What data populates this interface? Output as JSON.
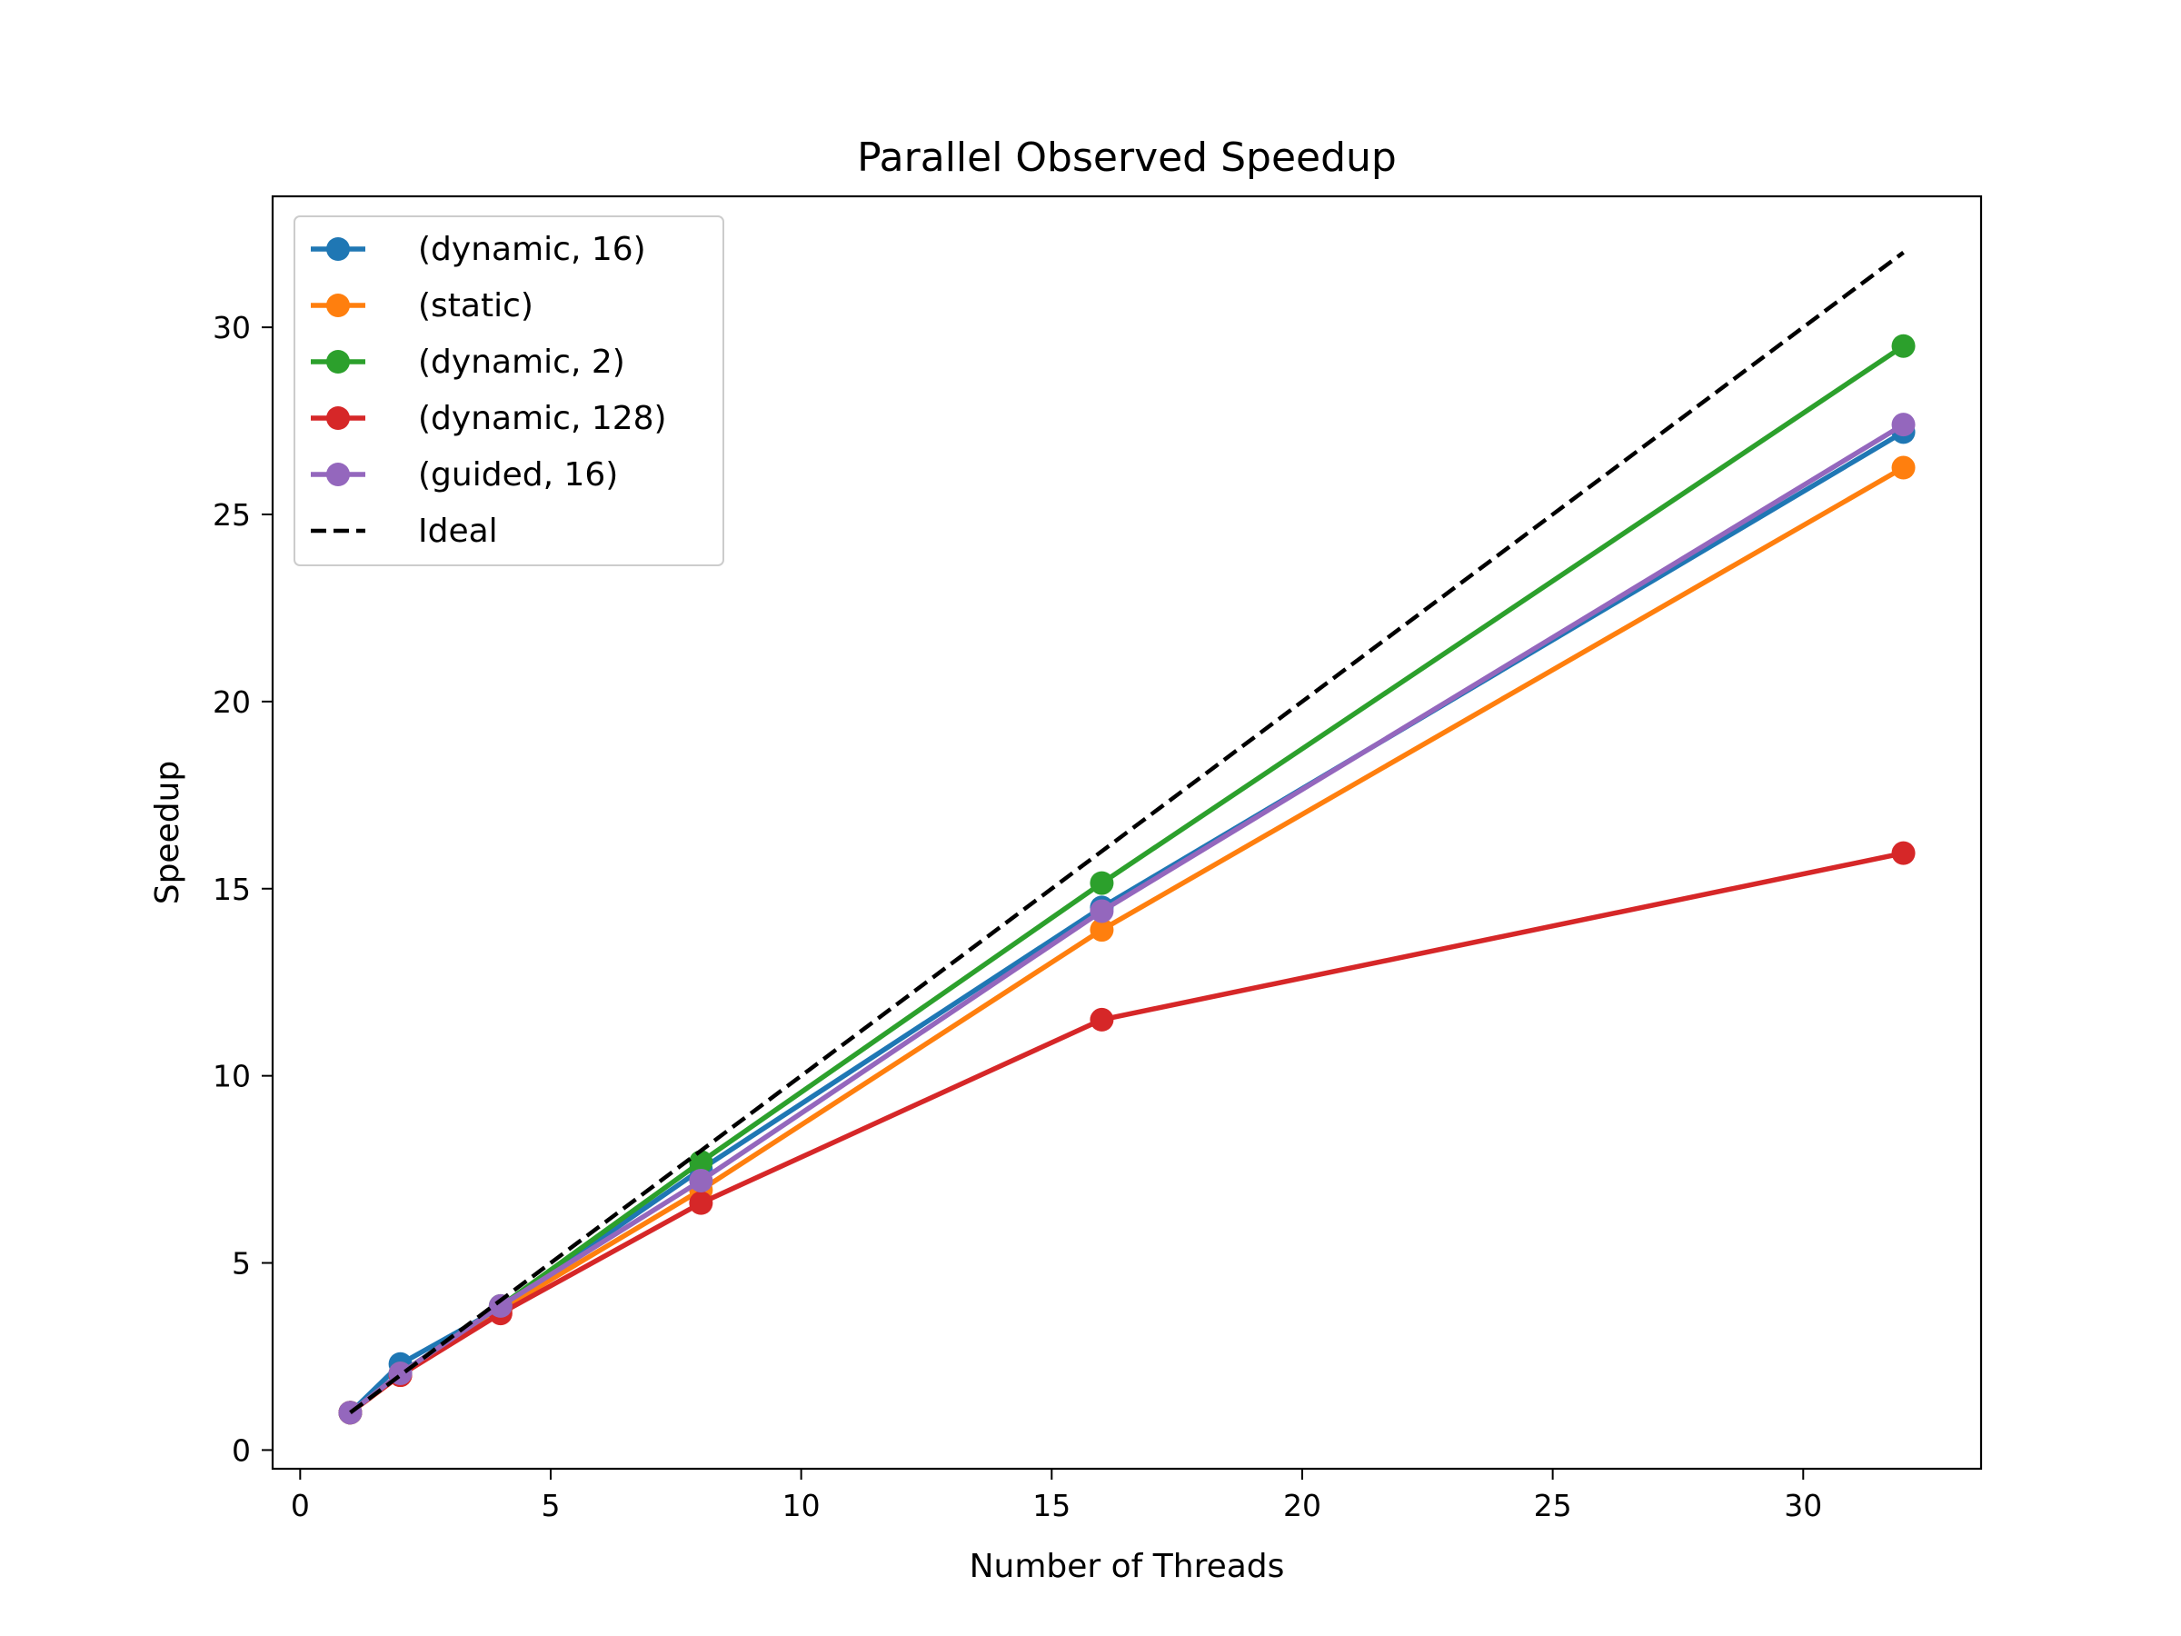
{
  "chart_data": {
    "type": "line",
    "title": "Parallel Observed Speedup",
    "xlabel": "Number of Threads",
    "ylabel": "Speedup",
    "xlim": [
      -0.55,
      33.55
    ],
    "ylim": [
      -0.5,
      33.5
    ],
    "xticks": [
      0,
      5,
      10,
      15,
      20,
      25,
      30
    ],
    "yticks": [
      0,
      5,
      10,
      15,
      20,
      25,
      30
    ],
    "grid": false,
    "legend_position": "upper-left",
    "x": [
      1,
      2,
      4,
      8,
      16,
      32
    ],
    "series": [
      {
        "name": "(dynamic, 16)",
        "color": "#1f77b4",
        "values": [
          1.0,
          2.3,
          3.8,
          7.5,
          14.5,
          27.2
        ]
      },
      {
        "name": "(static)",
        "color": "#ff7f0e",
        "values": [
          1.0,
          2.0,
          3.75,
          6.95,
          13.9,
          26.25
        ]
      },
      {
        "name": "(dynamic, 2)",
        "color": "#2ca02c",
        "values": [
          1.0,
          2.05,
          3.85,
          7.7,
          15.15,
          29.5
        ]
      },
      {
        "name": "(dynamic, 128)",
        "color": "#d62728",
        "values": [
          1.0,
          2.0,
          3.65,
          6.6,
          11.5,
          15.95
        ]
      },
      {
        "name": "(guided, 16)",
        "color": "#9467bd",
        "values": [
          1.0,
          2.05,
          3.85,
          7.2,
          14.4,
          27.4
        ]
      }
    ],
    "ideal": {
      "name": "Ideal",
      "color": "#000000",
      "style": "dashed",
      "x": [
        1,
        32
      ],
      "values": [
        1,
        32
      ]
    }
  }
}
